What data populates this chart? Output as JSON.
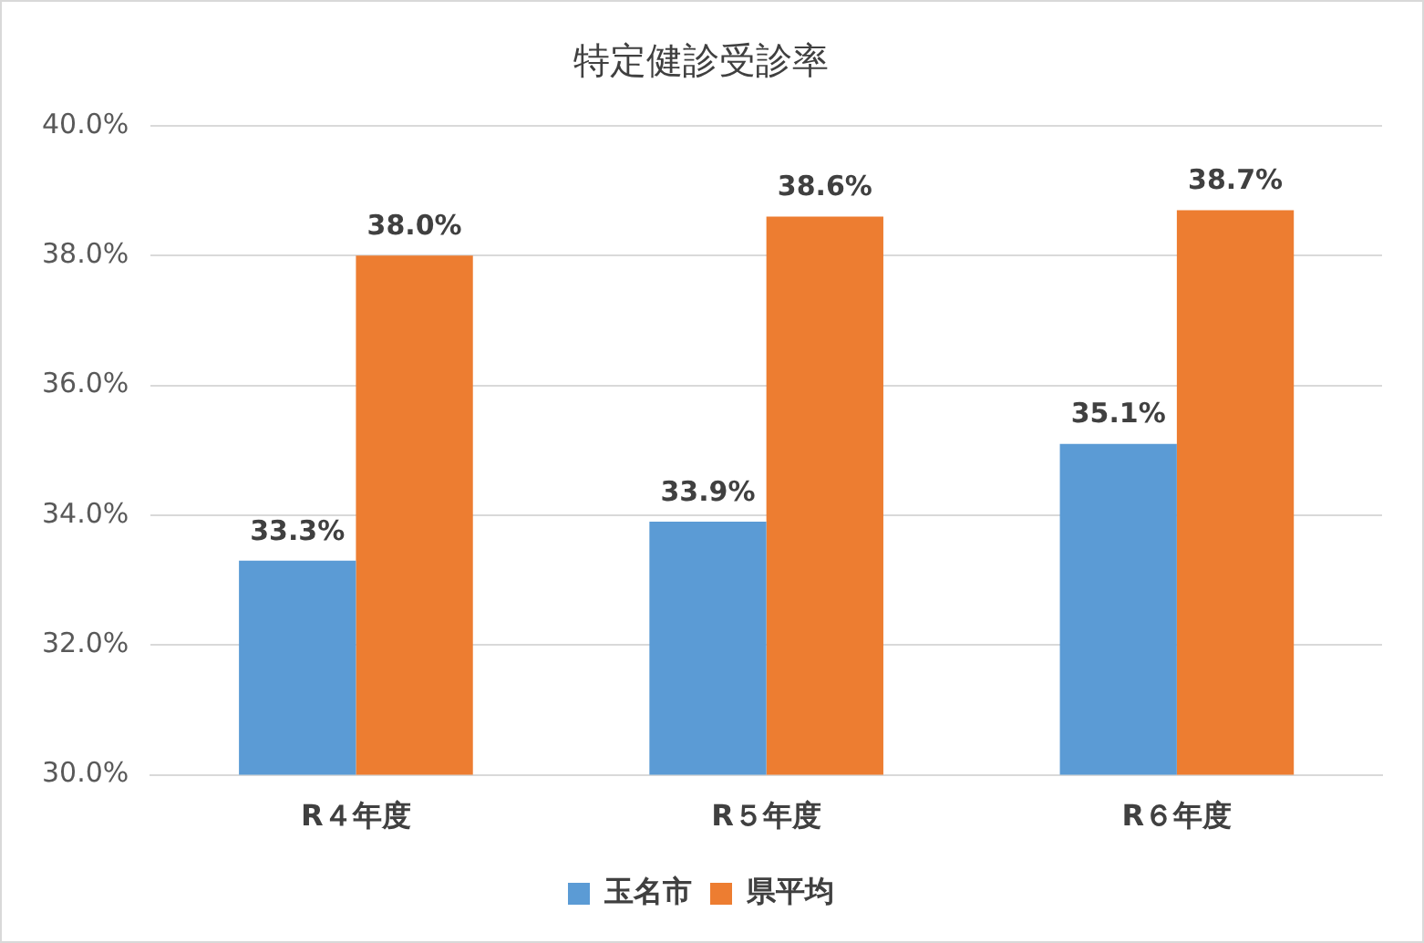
{
  "chart_data": {
    "type": "bar",
    "title": "特定健診受診率",
    "categories": [
      "R４年度",
      "R５年度",
      "R６年度"
    ],
    "series": [
      {
        "name": "玉名市",
        "color": "#5b9bd5",
        "values": [
          33.3,
          33.9,
          35.1
        ],
        "value_labels": [
          "33.3%",
          "33.9%",
          "35.1%"
        ]
      },
      {
        "name": "県平均",
        "color": "#ed7d31",
        "values": [
          38.0,
          38.6,
          38.7
        ],
        "value_labels": [
          "38.0%",
          "38.6%",
          "38.7%"
        ]
      }
    ],
    "ylim": [
      30,
      40
    ],
    "yticks": [
      {
        "value": 30,
        "label": "30.0%"
      },
      {
        "value": 32,
        "label": "32.0%"
      },
      {
        "value": 34,
        "label": "34.0%"
      },
      {
        "value": 36,
        "label": "36.0%"
      },
      {
        "value": 38,
        "label": "38.0%"
      },
      {
        "value": 40,
        "label": "40.0%"
      }
    ],
    "grid": "y",
    "legend": "bottom"
  }
}
